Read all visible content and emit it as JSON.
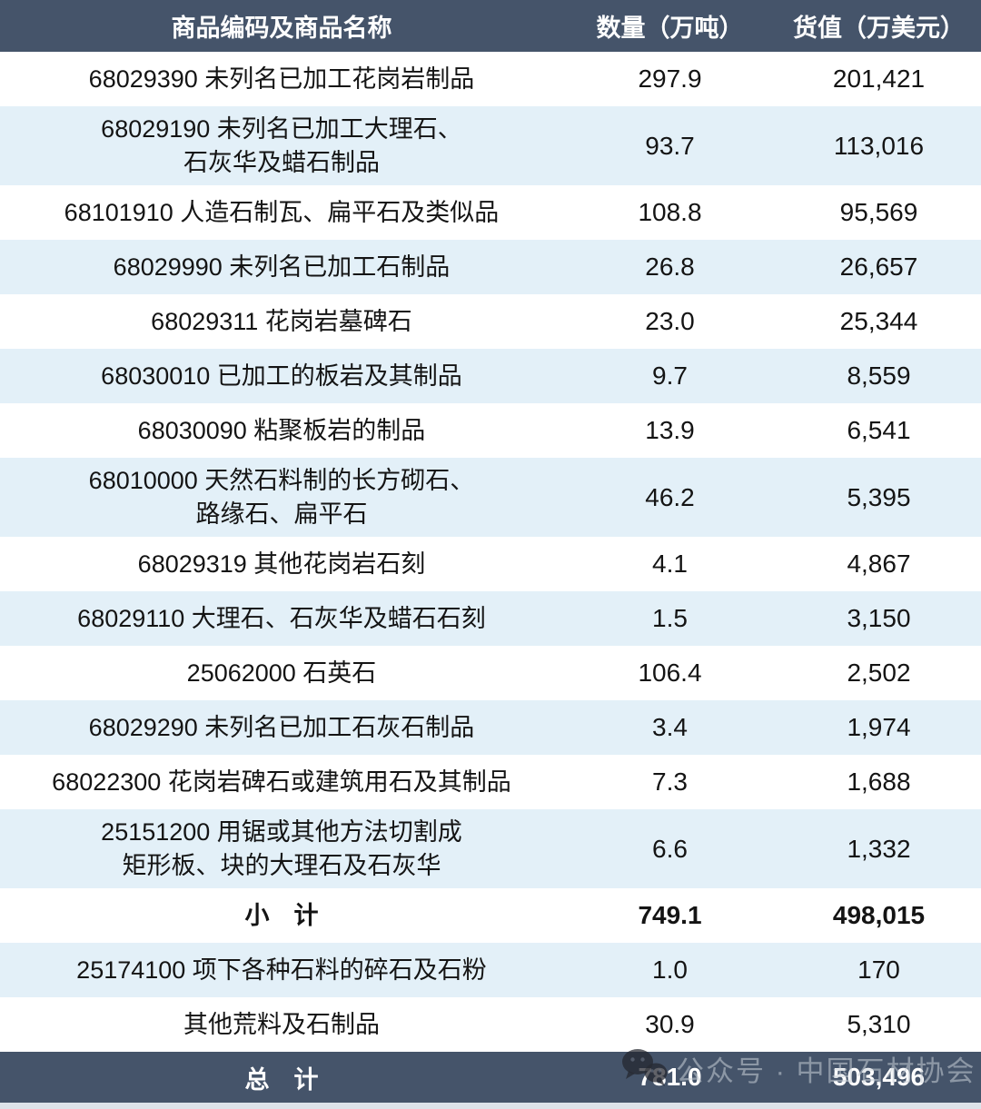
{
  "chart_data": {
    "type": "table",
    "columns": [
      "商品编码及商品名称",
      "数量（万吨）",
      "货值（万美元）"
    ],
    "rows": [
      {
        "lines": [
          "68029390  未列名已加工花岗岩制品"
        ],
        "qty": "297.9",
        "value": "201,421",
        "bold": false
      },
      {
        "lines": [
          "68029190  未列名已加工大理石、",
          "石灰华及蜡石制品"
        ],
        "qty": "93.7",
        "value": "113,016",
        "bold": false
      },
      {
        "lines": [
          "68101910  人造石制瓦、扁平石及类似品"
        ],
        "qty": "108.8",
        "value": "95,569",
        "bold": false
      },
      {
        "lines": [
          "68029990  未列名已加工石制品"
        ],
        "qty": "26.8",
        "value": "26,657",
        "bold": false
      },
      {
        "lines": [
          "68029311  花岗岩墓碑石"
        ],
        "qty": "23.0",
        "value": "25,344",
        "bold": false
      },
      {
        "lines": [
          "68030010  已加工的板岩及其制品"
        ],
        "qty": "9.7",
        "value": "8,559",
        "bold": false
      },
      {
        "lines": [
          "68030090  粘聚板岩的制品"
        ],
        "qty": "13.9",
        "value": "6,541",
        "bold": false
      },
      {
        "lines": [
          "68010000  天然石料制的长方砌石、",
          "路缘石、扁平石"
        ],
        "qty": "46.2",
        "value": "5,395",
        "bold": false
      },
      {
        "lines": [
          "68029319  其他花岗岩石刻"
        ],
        "qty": "4.1",
        "value": "4,867",
        "bold": false
      },
      {
        "lines": [
          "68029110  大理石、石灰华及蜡石石刻"
        ],
        "qty": "1.5",
        "value": "3,150",
        "bold": false
      },
      {
        "lines": [
          "25062000  石英石"
        ],
        "qty": "106.4",
        "value": "2,502",
        "bold": false
      },
      {
        "lines": [
          "68029290  未列名已加工石灰石制品"
        ],
        "qty": "3.4",
        "value": "1,974",
        "bold": false
      },
      {
        "lines": [
          "68022300  花岗岩碑石或建筑用石及其制品"
        ],
        "qty": "7.3",
        "value": "1,688",
        "bold": false
      },
      {
        "lines": [
          "25151200  用锯或其他方法切割成",
          "矩形板、块的大理石及石灰华"
        ],
        "qty": "6.6",
        "value": "1,332",
        "bold": false
      },
      {
        "lines": [
          "小　计"
        ],
        "qty": "749.1",
        "value": "498,015",
        "bold": true
      },
      {
        "lines": [
          "25174100 项下各种石料的碎石及石粉"
        ],
        "qty": "1.0",
        "value": "170",
        "bold": false
      },
      {
        "lines": [
          "其他荒料及石制品"
        ],
        "qty": "30.9",
        "value": "5,310",
        "bold": false
      }
    ],
    "footer": {
      "label": "总　计",
      "qty": "781.0",
      "value": "503,496"
    }
  },
  "watermark": {
    "icon": "wechat-icon",
    "text": "公众号 · 中国石材协会"
  },
  "colors": {
    "header_bg": "#45546a",
    "footer_bg": "#45546a",
    "alt_row_bg": "#e3f0f8",
    "row_bg": "#ffffff",
    "header_text": "#ffffff",
    "body_text": "#141414",
    "bottom_strip": "#dde3e9"
  }
}
